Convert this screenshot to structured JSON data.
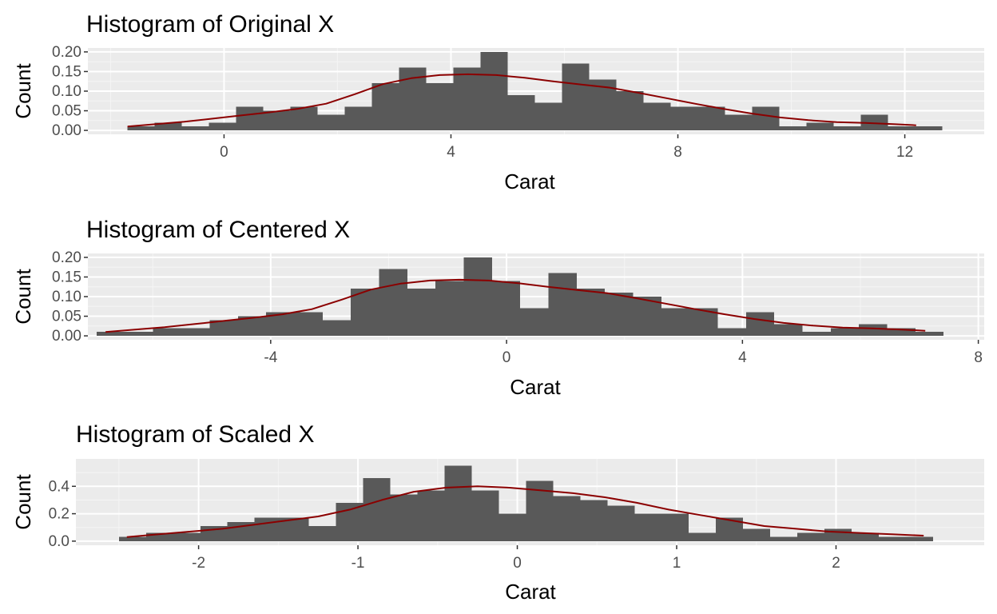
{
  "colors": {
    "panel_background": "#ebebeb",
    "grid_major": "#ffffff",
    "grid_minor": "#f5f5f5",
    "bar_fill": "#595959",
    "density_line": "#8b0000",
    "tick_mark": "#333333"
  },
  "chart_data": [
    {
      "type": "bar",
      "title": "Histogram of Original X",
      "xlabel": "Carat",
      "ylabel": "Count",
      "xlim": [
        -2.4,
        13.4
      ],
      "ylim": [
        -0.01,
        0.21
      ],
      "x_ticks": [
        0,
        4,
        8,
        12
      ],
      "x_tick_labels": [
        "0",
        "4",
        "8",
        "12"
      ],
      "y_ticks": [
        0,
        0.05,
        0.1,
        0.15,
        0.2
      ],
      "y_tick_labels": [
        "0.00",
        "0.05",
        "0.10",
        "0.15",
        "0.20"
      ],
      "grid": true,
      "bins": {
        "start": -1.7,
        "width": 0.4787,
        "counts_density": [
          0.01,
          0.02,
          0.01,
          0.02,
          0.06,
          0.05,
          0.06,
          0.04,
          0.06,
          0.12,
          0.16,
          0.12,
          0.16,
          0.2,
          0.09,
          0.07,
          0.17,
          0.13,
          0.1,
          0.07,
          0.06,
          0.06,
          0.04,
          0.06,
          0.01,
          0.02,
          0.01,
          0.04,
          0.01,
          0.01
        ]
      },
      "density_curve": {
        "x": [
          -1.7,
          -1.2,
          -0.7,
          -0.2,
          0.3,
          0.8,
          1.3,
          1.8,
          2.3,
          2.8,
          3.3,
          3.8,
          4.3,
          4.8,
          5.3,
          5.8,
          6.3,
          6.8,
          7.3,
          7.8,
          8.3,
          8.8,
          9.3,
          9.8,
          10.3,
          10.8,
          11.3,
          11.8,
          12.2
        ],
        "y": [
          0.01,
          0.016,
          0.022,
          0.03,
          0.038,
          0.046,
          0.055,
          0.068,
          0.092,
          0.118,
          0.133,
          0.141,
          0.143,
          0.141,
          0.134,
          0.125,
          0.117,
          0.109,
          0.096,
          0.082,
          0.068,
          0.055,
          0.043,
          0.033,
          0.026,
          0.021,
          0.019,
          0.016,
          0.013
        ]
      }
    },
    {
      "type": "bar",
      "title": "Histogram of Centered X",
      "xlabel": "Carat",
      "ylabel": "Count",
      "xlim": [
        -7.1,
        8.1
      ],
      "ylim": [
        -0.01,
        0.21
      ],
      "x_ticks": [
        -4,
        0,
        4,
        8
      ],
      "x_tick_labels": [
        "-4",
        "0",
        "4",
        "8"
      ],
      "y_ticks": [
        0,
        0.05,
        0.1,
        0.15,
        0.2
      ],
      "y_tick_labels": [
        "0.00",
        "0.05",
        "0.10",
        "0.15",
        "0.20"
      ],
      "grid": true,
      "bins": {
        "start": -6.95,
        "width": 0.4787,
        "counts_density": [
          0.01,
          0.01,
          0.02,
          0.02,
          0.04,
          0.05,
          0.06,
          0.06,
          0.04,
          0.12,
          0.17,
          0.12,
          0.14,
          0.2,
          0.14,
          0.07,
          0.16,
          0.12,
          0.11,
          0.1,
          0.07,
          0.07,
          0.02,
          0.06,
          0.03,
          0.01,
          0.02,
          0.03,
          0.02,
          0.01
        ]
      },
      "density_curve": {
        "x": [
          -6.8,
          -6.3,
          -5.8,
          -5.3,
          -4.8,
          -4.3,
          -3.8,
          -3.3,
          -2.8,
          -2.3,
          -1.8,
          -1.3,
          -0.8,
          -0.3,
          0.2,
          0.7,
          1.2,
          1.7,
          2.2,
          2.7,
          3.2,
          3.7,
          4.2,
          4.7,
          5.2,
          5.7,
          6.2,
          6.7,
          7.1
        ],
        "y": [
          0.01,
          0.016,
          0.022,
          0.03,
          0.038,
          0.046,
          0.055,
          0.068,
          0.092,
          0.118,
          0.133,
          0.141,
          0.143,
          0.141,
          0.134,
          0.125,
          0.117,
          0.109,
          0.096,
          0.082,
          0.068,
          0.055,
          0.043,
          0.033,
          0.026,
          0.021,
          0.019,
          0.016,
          0.013
        ]
      }
    },
    {
      "type": "bar",
      "title": "Histogram of Scaled X",
      "xlabel": "Carat",
      "ylabel": "Count",
      "xlim": [
        -2.77,
        2.93
      ],
      "ylim": [
        -0.03,
        0.6
      ],
      "x_ticks": [
        -2,
        -1,
        0,
        1,
        2
      ],
      "x_tick_labels": [
        "-2",
        "-1",
        "0",
        "1",
        "2"
      ],
      "y_ticks": [
        0,
        0.2,
        0.4
      ],
      "y_tick_labels": [
        "0.0",
        "0.2",
        "0.4"
      ],
      "grid": true,
      "bins": {
        "start": -2.5,
        "width": 0.1703,
        "counts_density": [
          0.03,
          0.06,
          0.06,
          0.11,
          0.14,
          0.17,
          0.17,
          0.11,
          0.28,
          0.46,
          0.34,
          0.37,
          0.55,
          0.37,
          0.2,
          0.44,
          0.33,
          0.3,
          0.26,
          0.2,
          0.2,
          0.06,
          0.17,
          0.09,
          0.03,
          0.06,
          0.09,
          0.06,
          0.03,
          0.03
        ]
      },
      "density_curve": {
        "x": [
          -2.45,
          -2.25,
          -2.05,
          -1.85,
          -1.65,
          -1.45,
          -1.25,
          -1.05,
          -0.85,
          -0.65,
          -0.45,
          -0.25,
          -0.05,
          0.15,
          0.35,
          0.55,
          0.75,
          0.95,
          1.15,
          1.35,
          1.55,
          1.75,
          1.95,
          2.15,
          2.35,
          2.55
        ],
        "y": [
          0.03,
          0.05,
          0.07,
          0.09,
          0.12,
          0.15,
          0.18,
          0.23,
          0.3,
          0.36,
          0.39,
          0.4,
          0.39,
          0.37,
          0.35,
          0.32,
          0.28,
          0.23,
          0.19,
          0.15,
          0.11,
          0.09,
          0.07,
          0.06,
          0.05,
          0.04
        ]
      }
    }
  ]
}
